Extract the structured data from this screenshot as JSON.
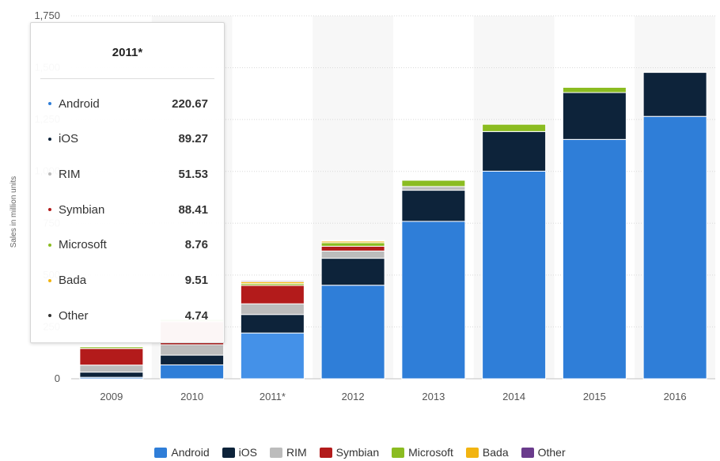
{
  "chart_data": {
    "type": "bar",
    "stacked": true,
    "categories": [
      "2009",
      "2010",
      "2011*",
      "2012",
      "2013",
      "2014",
      "2015",
      "2016"
    ],
    "ylabel": "Sales in million units",
    "yticks": [
      "0",
      "250",
      "500",
      "750",
      "1,000",
      "1,250",
      "1,500",
      "1,750"
    ],
    "ylim": [
      0,
      1750
    ],
    "grid": true,
    "legend_position": "bottom",
    "series": [
      {
        "name": "Android",
        "color": "#2f7ed8",
        "values": [
          7,
          67,
          220.67,
          451,
          759,
          1001,
          1154,
          1265
        ]
      },
      {
        "name": "iOS",
        "color": "#0d233a",
        "values": [
          25,
          47,
          89.27,
          130,
          150,
          191,
          226,
          212
        ]
      },
      {
        "name": "RIM",
        "color": "#bcbcbc",
        "values": [
          34,
          50,
          51.53,
          35,
          18,
          0,
          0,
          0
        ]
      },
      {
        "name": "Symbian",
        "color": "#b31b1b",
        "values": [
          80,
          111,
          88.41,
          23,
          0,
          0,
          0,
          0
        ]
      },
      {
        "name": "Microsoft",
        "color": "#8bbc21",
        "values": [
          8,
          12,
          8.76,
          17,
          30,
          35,
          25,
          0
        ]
      },
      {
        "name": "Bada",
        "color": "#f2b411",
        "values": [
          0,
          3,
          9.51,
          8,
          0,
          0,
          0,
          0
        ]
      },
      {
        "name": "Other",
        "color": "#6a3b8c",
        "values": [
          2,
          3,
          4.74,
          3,
          0,
          0,
          0,
          0
        ]
      }
    ]
  },
  "tooltip": {
    "title": "2011*",
    "rows": [
      {
        "name": "Android",
        "value": "220.67",
        "color": "#2f7ed8"
      },
      {
        "name": "iOS",
        "value": "89.27",
        "color": "#0d233a"
      },
      {
        "name": "RIM",
        "value": "51.53",
        "color": "#bcbcbc"
      },
      {
        "name": "Symbian",
        "value": "88.41",
        "color": "#b31b1b"
      },
      {
        "name": "Microsoft",
        "value": "8.76",
        "color": "#8bbc21"
      },
      {
        "name": "Bada",
        "value": "9.51",
        "color": "#f2b411"
      },
      {
        "name": "Other",
        "value": "4.74",
        "color": "#333333"
      }
    ]
  }
}
